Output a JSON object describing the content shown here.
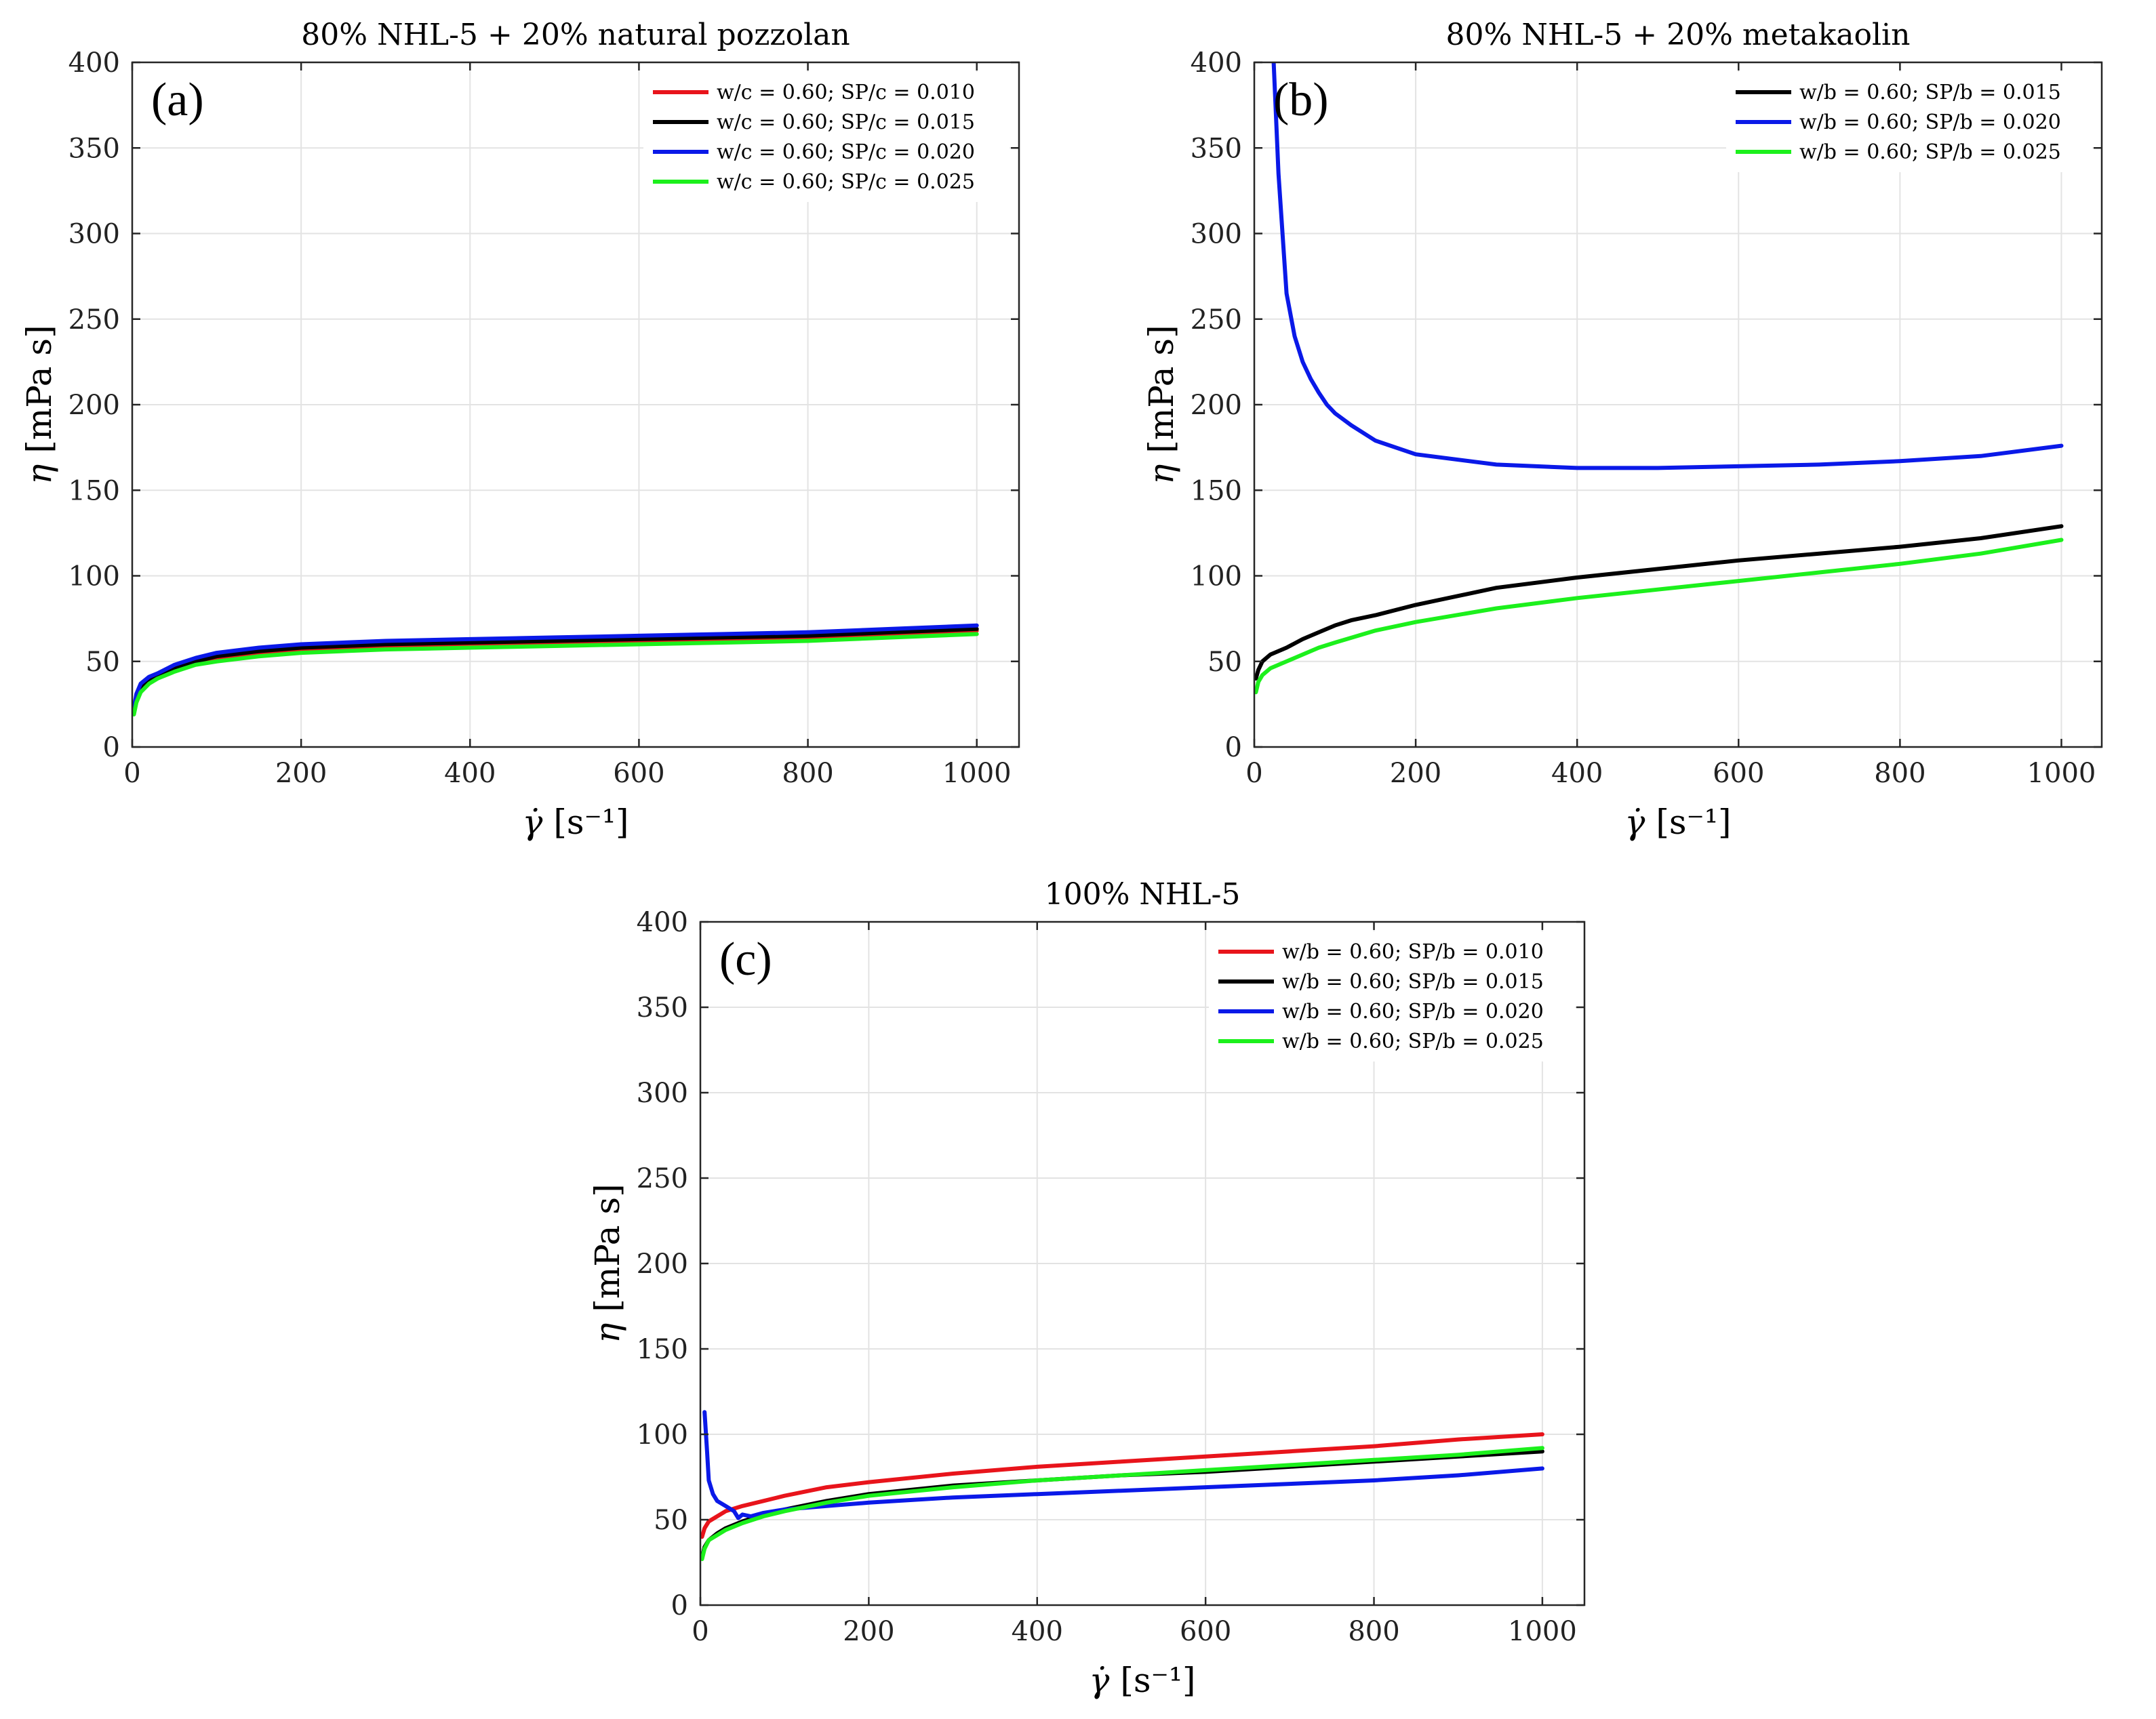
{
  "chart_data": [
    {
      "id": "a",
      "type": "line",
      "panel_tag": "(a)",
      "title": "80% NHL-5 + 20% natural pozzolan",
      "xlabel_symbol": "γ̇",
      "xlabel_unit": "[s⁻¹]",
      "ylabel_symbol": "η",
      "ylabel_unit": "[mPa s]",
      "xlim": [
        0,
        1050
      ],
      "ylim": [
        0,
        400
      ],
      "xticks": [
        0,
        200,
        400,
        600,
        800,
        1000
      ],
      "yticks": [
        0,
        50,
        100,
        150,
        200,
        250,
        300,
        350,
        400
      ],
      "grid": true,
      "legend_position": "top-right",
      "series": [
        {
          "name": "w/c = 0.60; SP/c = 0.010",
          "color": "#e8141b",
          "x": [
            2,
            5,
            10,
            20,
            30,
            50,
            75,
            100,
            150,
            200,
            300,
            400,
            500,
            600,
            700,
            800,
            900,
            1000
          ],
          "y": [
            20,
            27,
            33,
            38,
            41,
            45,
            49,
            52,
            55,
            57,
            59,
            60,
            61,
            62,
            63,
            64,
            66,
            68
          ]
        },
        {
          "name": "w/c = 0.60; SP/c = 0.015",
          "color": "#000000",
          "x": [
            2,
            5,
            10,
            20,
            30,
            50,
            75,
            100,
            150,
            200,
            300,
            400,
            500,
            600,
            700,
            800,
            900,
            1000
          ],
          "y": [
            22,
            29,
            35,
            39,
            42,
            46,
            50,
            53,
            56,
            58,
            60,
            61,
            62,
            63,
            64,
            65,
            67,
            69
          ]
        },
        {
          "name": "w/c = 0.60; SP/c = 0.020",
          "color": "#0a19e8",
          "x": [
            2,
            5,
            10,
            20,
            30,
            50,
            75,
            100,
            150,
            200,
            300,
            400,
            500,
            600,
            700,
            800,
            900,
            1000
          ],
          "y": [
            23,
            31,
            37,
            41,
            43,
            48,
            52,
            55,
            58,
            60,
            62,
            63,
            64,
            65,
            66,
            67,
            69,
            71
          ]
        },
        {
          "name": "w/c = 0.60; SP/c = 0.025",
          "color": "#1cf01c",
          "x": [
            2,
            5,
            10,
            20,
            30,
            50,
            75,
            100,
            150,
            200,
            300,
            400,
            500,
            600,
            700,
            800,
            900,
            1000
          ],
          "y": [
            19,
            26,
            32,
            37,
            40,
            44,
            48,
            50,
            53,
            55,
            57,
            58,
            59,
            60,
            61,
            62,
            64,
            66
          ]
        }
      ]
    },
    {
      "id": "b",
      "type": "line",
      "panel_tag": "(b)",
      "title": "80% NHL-5 + 20% metakaolin",
      "xlabel_symbol": "γ̇",
      "xlabel_unit": "[s⁻¹]",
      "ylabel_symbol": "η",
      "ylabel_unit": "[mPa s]",
      "xlim": [
        0,
        1050
      ],
      "ylim": [
        0,
        400
      ],
      "xticks": [
        0,
        200,
        400,
        600,
        800,
        1000
      ],
      "yticks": [
        0,
        50,
        100,
        150,
        200,
        250,
        300,
        350,
        400
      ],
      "grid": true,
      "legend_position": "top-right",
      "series": [
        {
          "name": "w/b = 0.60; SP/b = 0.015",
          "color": "#000000",
          "x": [
            2,
            5,
            10,
            20,
            40,
            60,
            80,
            100,
            120,
            150,
            200,
            300,
            400,
            500,
            600,
            700,
            800,
            900,
            1000
          ],
          "y": [
            40,
            45,
            50,
            54,
            58,
            63,
            67,
            71,
            74,
            77,
            83,
            93,
            99,
            104,
            109,
            113,
            117,
            122,
            129
          ]
        },
        {
          "name": "w/b = 0.60; SP/b = 0.020",
          "color": "#0a19e8",
          "x": [
            24,
            30,
            40,
            50,
            60,
            70,
            80,
            90,
            100,
            120,
            150,
            200,
            300,
            400,
            500,
            600,
            700,
            800,
            900,
            1000
          ],
          "y": [
            400,
            335,
            265,
            240,
            225,
            215,
            207,
            200,
            195,
            188,
            179,
            171,
            165,
            163,
            163,
            164,
            165,
            167,
            170,
            176
          ]
        },
        {
          "name": "w/b = 0.60; SP/b = 0.025",
          "color": "#1cf01c",
          "x": [
            2,
            5,
            10,
            20,
            40,
            60,
            80,
            100,
            150,
            200,
            300,
            400,
            500,
            600,
            700,
            800,
            900,
            1000
          ],
          "y": [
            32,
            38,
            42,
            46,
            50,
            54,
            58,
            61,
            68,
            73,
            81,
            87,
            92,
            97,
            102,
            107,
            113,
            121
          ]
        }
      ]
    },
    {
      "id": "c",
      "type": "line",
      "panel_tag": "(c)",
      "title": "100% NHL-5",
      "xlabel_symbol": "γ̇",
      "xlabel_unit": "[s⁻¹]",
      "ylabel_symbol": "η",
      "ylabel_unit": "[mPa s]",
      "xlim": [
        0,
        1050
      ],
      "ylim": [
        0,
        400
      ],
      "xticks": [
        0,
        200,
        400,
        600,
        800,
        1000
      ],
      "yticks": [
        0,
        50,
        100,
        150,
        200,
        250,
        300,
        350,
        400
      ],
      "grid": true,
      "legend_position": "top-right",
      "series": [
        {
          "name": "w/b = 0.60; SP/b = 0.010",
          "color": "#e8141b",
          "x": [
            2,
            5,
            10,
            20,
            30,
            50,
            75,
            100,
            150,
            200,
            300,
            400,
            500,
            600,
            700,
            800,
            900,
            1000
          ],
          "y": [
            40,
            45,
            49,
            52,
            55,
            58,
            61,
            64,
            69,
            72,
            77,
            81,
            84,
            87,
            90,
            93,
            97,
            100
          ]
        },
        {
          "name": "w/b = 0.60; SP/b = 0.015",
          "color": "#000000",
          "x": [
            2,
            5,
            10,
            20,
            30,
            50,
            75,
            100,
            150,
            200,
            300,
            400,
            500,
            600,
            700,
            800,
            900,
            1000
          ],
          "y": [
            28,
            34,
            38,
            42,
            45,
            49,
            53,
            56,
            61,
            65,
            70,
            73,
            76,
            78,
            81,
            84,
            87,
            90
          ]
        },
        {
          "name": "w/b = 0.60; SP/b = 0.020",
          "color": "#0a19e8",
          "x": [
            5,
            8,
            10,
            15,
            20,
            30,
            40,
            45,
            50,
            60,
            75,
            100,
            150,
            200,
            300,
            400,
            500,
            600,
            700,
            800,
            900,
            1000
          ],
          "y": [
            113,
            90,
            73,
            65,
            61,
            58,
            55,
            51,
            53,
            52,
            54,
            56,
            58,
            60,
            63,
            65,
            67,
            69,
            71,
            73,
            76,
            80
          ]
        },
        {
          "name": "w/b = 0.60; SP/b = 0.025",
          "color": "#1cf01c",
          "x": [
            2,
            5,
            10,
            20,
            30,
            50,
            75,
            100,
            150,
            200,
            300,
            400,
            500,
            600,
            700,
            800,
            900,
            1000
          ],
          "y": [
            27,
            33,
            38,
            41,
            44,
            48,
            52,
            55,
            60,
            64,
            69,
            73,
            76,
            79,
            82,
            85,
            88,
            92
          ]
        }
      ]
    }
  ]
}
